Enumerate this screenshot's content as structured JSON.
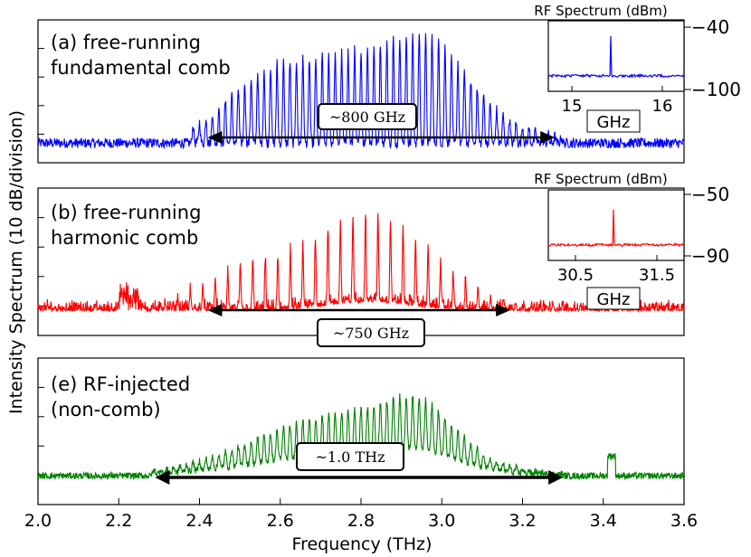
{
  "figure": {
    "ylabel": "Intensity Spectrum (10 dB/division)",
    "xlabel": "Frequency (THz)"
  },
  "chart_data": [
    {
      "type": "line",
      "panel": "a",
      "label_line1": "(a) free-running",
      "label_line2": "fundamental comb",
      "color": "#0000ff",
      "x_range": [
        2.0,
        3.6
      ],
      "y_divisions": 5,
      "envelope": {
        "peak_thz": 2.8,
        "start_thz": 2.42,
        "end_thz": 3.28,
        "mode_spacing_thz": 0.016
      },
      "arrow": {
        "from_thz": 2.42,
        "to_thz": 3.28,
        "label": "~800 GHz"
      },
      "inset": {
        "title": "RF Spectrum (dBm)",
        "x_ticks": [
          "15",
          "16"
        ],
        "x_unit": "GHz",
        "y_ticks": [
          "−40",
          "−100"
        ],
        "peak_ghz": 15.4
      }
    },
    {
      "type": "line",
      "panel": "b",
      "label_line1": "(b) free-running",
      "label_line2": "harmonic comb",
      "color": "#ff0000",
      "x_range": [
        2.0,
        3.6
      ],
      "y_divisions": 5,
      "envelope": {
        "peak_thz": 2.8,
        "start_thz": 2.42,
        "end_thz": 3.17,
        "mode_spacing_thz": 0.031
      },
      "arrow": {
        "from_thz": 2.42,
        "to_thz": 3.17,
        "label": "~750 GHz"
      },
      "inset": {
        "title": "RF Spectrum (dBm)",
        "x_ticks": [
          "30.5",
          "31.5"
        ],
        "x_unit": "GHz",
        "y_ticks": [
          "−50",
          "−90"
        ],
        "peak_ghz": 30.9
      }
    },
    {
      "type": "line",
      "panel": "e",
      "label_line1": "(e) RF-injected",
      "label_line2": "(non-comb)",
      "color": "#008000",
      "x_range": [
        2.0,
        3.6
      ],
      "x_ticks": [
        "2.0",
        "2.2",
        "2.4",
        "2.6",
        "2.8",
        "3.0",
        "3.2",
        "3.4",
        "3.6"
      ],
      "y_divisions": 5,
      "envelope": {
        "peak_thz": 2.95,
        "start_thz": 2.29,
        "end_thz": 3.3,
        "mode_spacing_thz": 0.016
      },
      "arrow": {
        "from_thz": 2.29,
        "to_thz": 3.3,
        "label": "~1.0 THz"
      }
    }
  ]
}
